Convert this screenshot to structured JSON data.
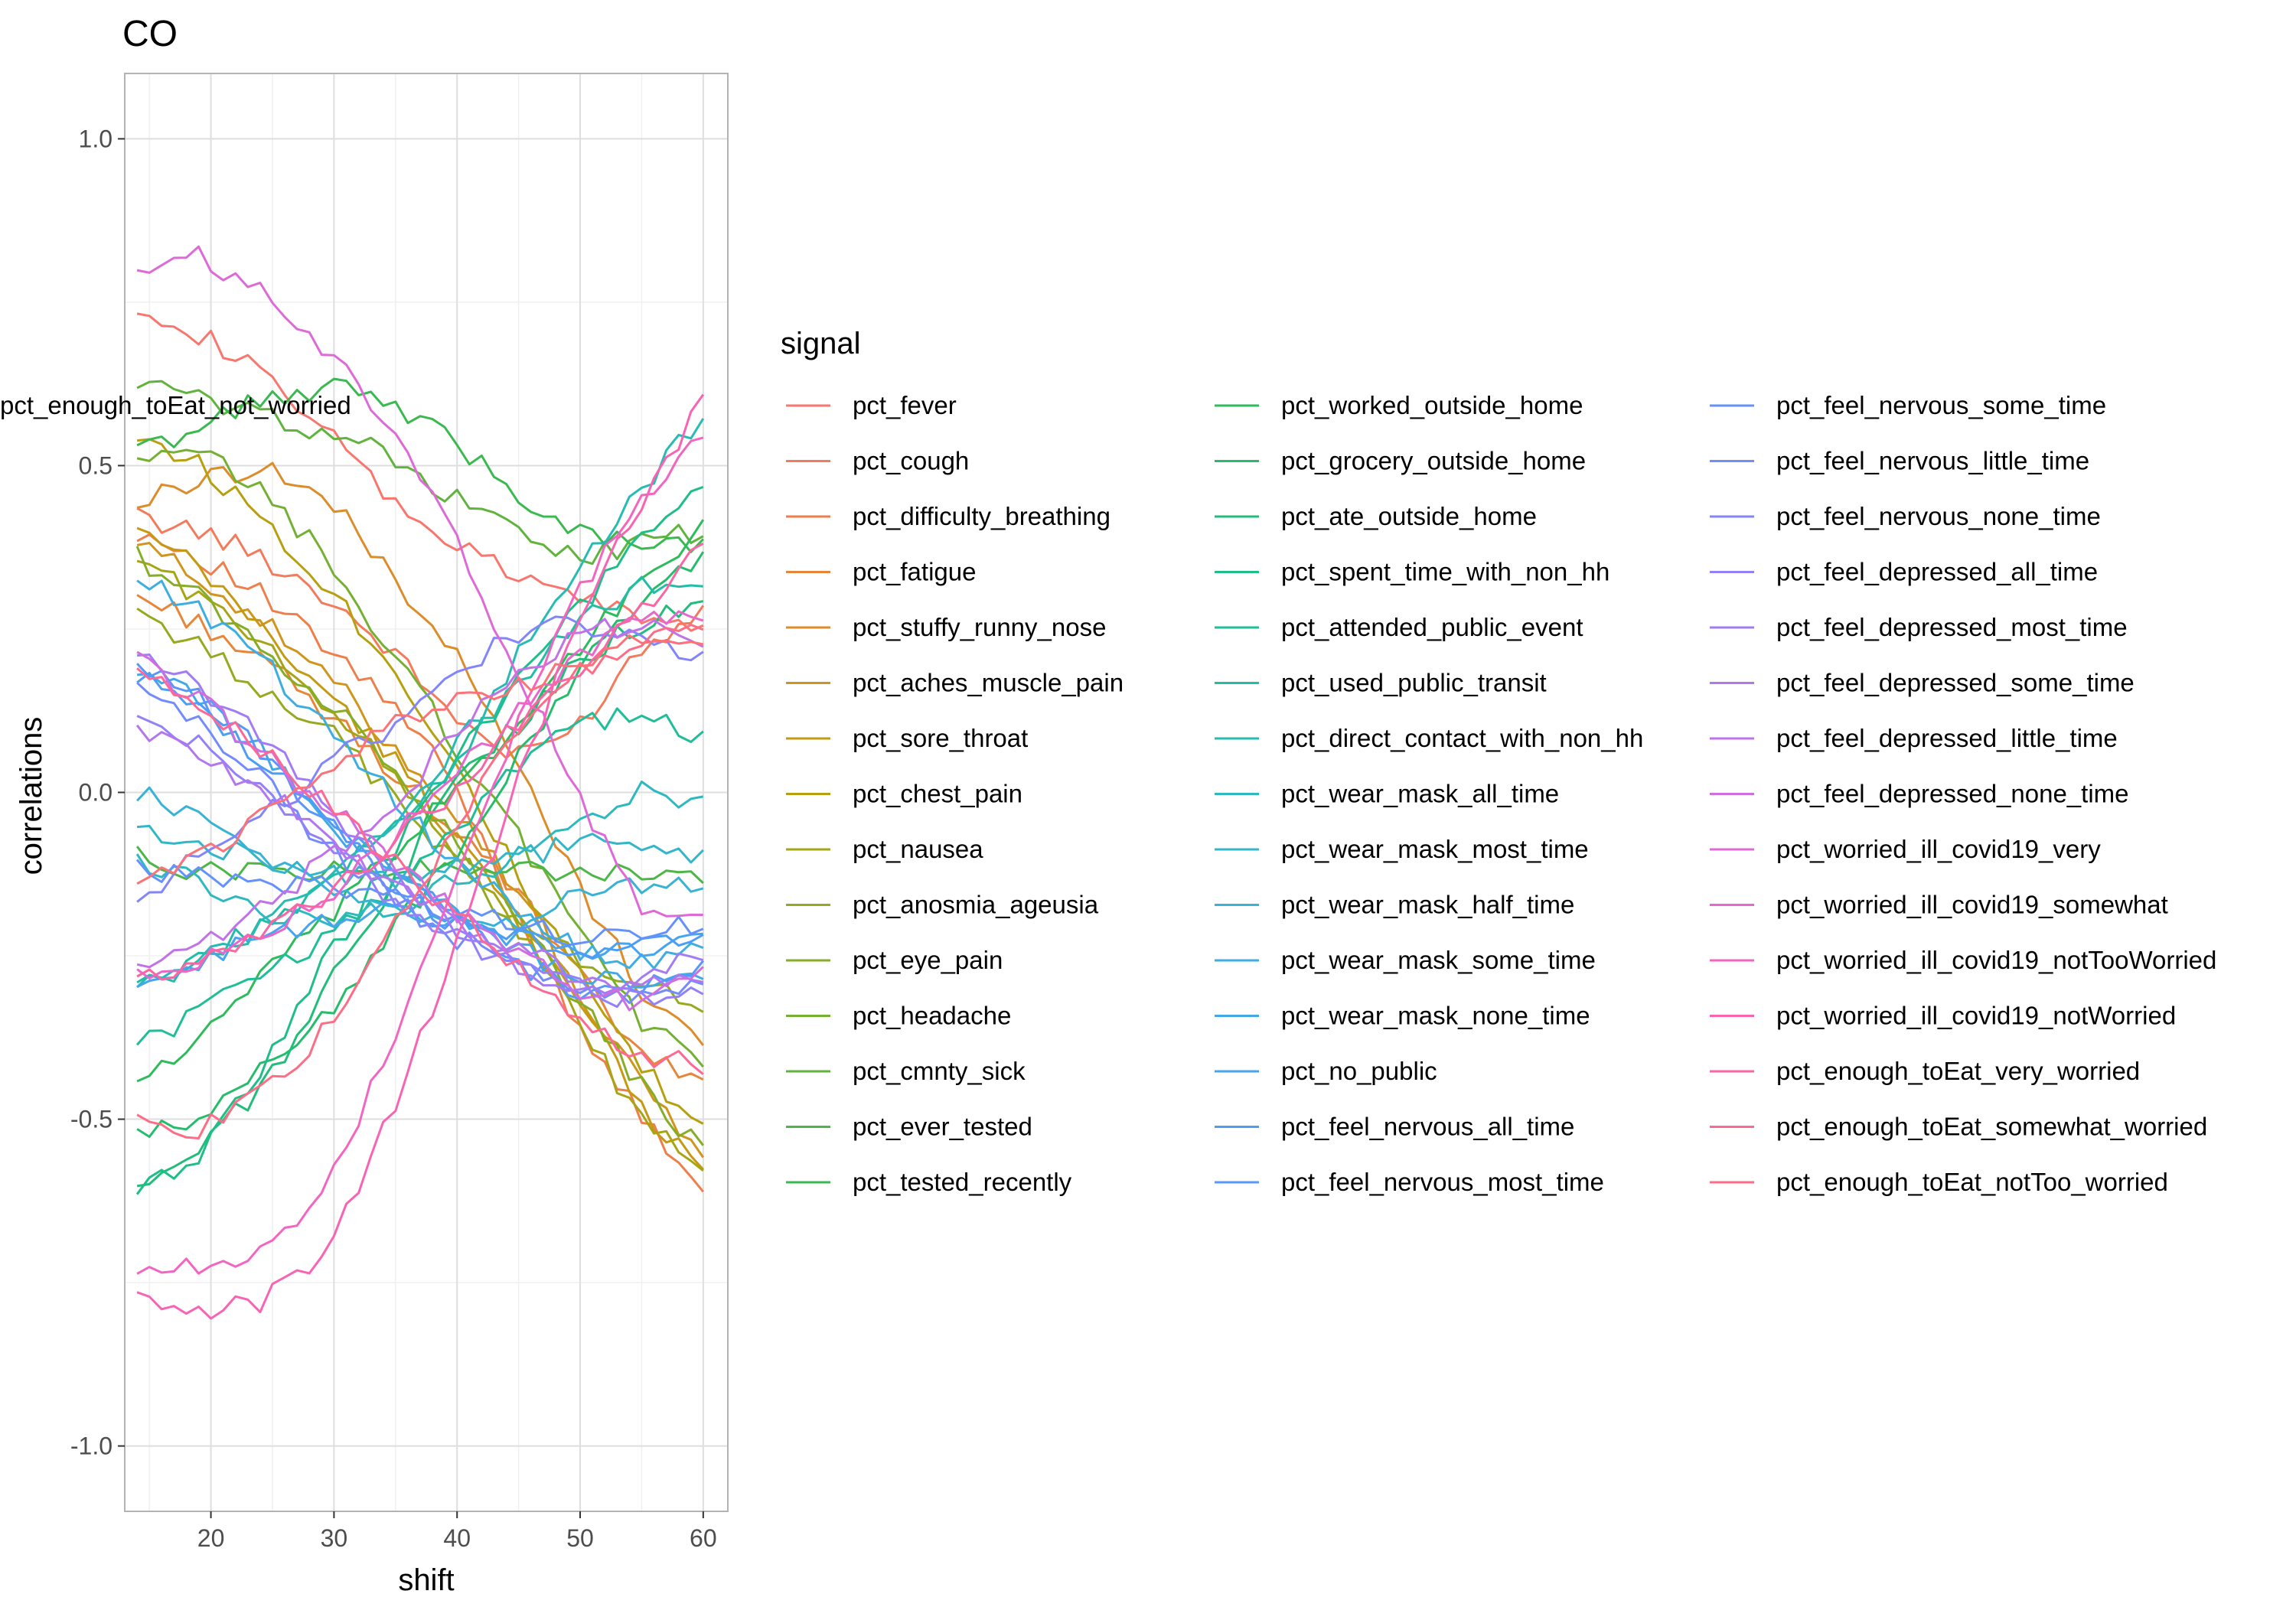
{
  "chart_data": {
    "type": "line",
    "title": "CO",
    "xlabel": "shift",
    "ylabel": "correlations",
    "xlim": [
      13,
      62
    ],
    "ylim": [
      -1.1,
      1.1
    ],
    "xticks": [
      20,
      30,
      40,
      50,
      60
    ],
    "yticks": [
      {
        "value": 1.0,
        "label": "1.0"
      },
      {
        "value": 0.5,
        "label": "0.5"
      },
      {
        "value": 0.0,
        "label": "0.0"
      },
      {
        "value": -0.5,
        "label": "-0.5"
      },
      {
        "value": -1.0,
        "label": "-1.0"
      }
    ],
    "grid": true,
    "legend_title": "signal",
    "legend_position": "right",
    "x_start": 14,
    "x_end": 60,
    "series": [
      {
        "name": "pct_fever",
        "color": "#F8766D",
        "values": [
          0.75,
          0.7,
          0.64,
          0.55,
          0.45,
          0.38,
          0.33,
          0.3,
          0.27,
          0.25
        ]
      },
      {
        "name": "pct_cough",
        "color": "#F47A5C",
        "values": [
          0.42,
          0.4,
          0.36,
          0.3,
          0.22,
          0.12,
          0.05,
          0.1,
          0.22,
          0.28
        ]
      },
      {
        "name": "pct_difficulty_breathing",
        "color": "#EE7F4B",
        "values": [
          0.4,
          0.36,
          0.3,
          0.22,
          0.14,
          0.02,
          -0.18,
          -0.35,
          -0.5,
          -0.6
        ]
      },
      {
        "name": "pct_fatigue",
        "color": "#E6863A",
        "values": [
          0.3,
          0.26,
          0.2,
          0.12,
          0.04,
          -0.05,
          -0.15,
          -0.28,
          -0.4,
          -0.45
        ]
      },
      {
        "name": "pct_stuffy_runny_nose",
        "color": "#DC8D2A",
        "values": [
          0.44,
          0.48,
          0.5,
          0.45,
          0.34,
          0.22,
          0.05,
          -0.14,
          -0.3,
          -0.38
        ]
      },
      {
        "name": "pct_aches_muscle_pain",
        "color": "#D1941C",
        "values": [
          0.38,
          0.33,
          0.26,
          0.18,
          0.08,
          -0.02,
          -0.14,
          -0.3,
          -0.45,
          -0.55
        ]
      },
      {
        "name": "pct_sore_throat",
        "color": "#C49A12",
        "values": [
          0.4,
          0.34,
          0.25,
          0.15,
          0.06,
          -0.06,
          -0.18,
          -0.32,
          -0.48,
          -0.58
        ]
      },
      {
        "name": "pct_chest_pain",
        "color": "#B6A00F",
        "values": [
          0.55,
          0.5,
          0.42,
          0.32,
          0.2,
          0.06,
          -0.12,
          -0.28,
          -0.42,
          -0.52
        ]
      },
      {
        "name": "pct_nausea",
        "color": "#A7A515",
        "values": [
          0.36,
          0.3,
          0.22,
          0.14,
          0.04,
          -0.08,
          -0.2,
          -0.35,
          -0.5,
          -0.58
        ]
      },
      {
        "name": "pct_anosmia_ageusia",
        "color": "#97A91E",
        "values": [
          0.28,
          0.22,
          0.16,
          0.1,
          0.0,
          -0.1,
          -0.2,
          -0.25,
          -0.3,
          -0.32
        ]
      },
      {
        "name": "pct_eye_pain",
        "color": "#86AD28",
        "values": [
          0.36,
          0.3,
          0.22,
          0.14,
          0.05,
          -0.06,
          -0.18,
          -0.32,
          -0.45,
          -0.55
        ]
      },
      {
        "name": "pct_headache",
        "color": "#74B032",
        "values": [
          0.5,
          0.52,
          0.46,
          0.36,
          0.22,
          0.08,
          -0.06,
          -0.2,
          -0.35,
          -0.42
        ]
      },
      {
        "name": "pct_cmnty_sick",
        "color": "#60B33C",
        "values": [
          0.63,
          0.6,
          0.58,
          0.55,
          0.52,
          0.45,
          0.4,
          0.36,
          0.38,
          0.4
        ]
      },
      {
        "name": "pct_ever_tested",
        "color": "#4CB646",
        "values": [
          -0.1,
          -0.12,
          -0.12,
          -0.12,
          -0.12,
          -0.12,
          -0.12,
          -0.12,
          -0.13,
          -0.14
        ]
      },
      {
        "name": "pct_tested_recently",
        "color": "#3AB950",
        "values": [
          0.52,
          0.56,
          0.6,
          0.62,
          0.6,
          0.54,
          0.46,
          0.4,
          0.38,
          0.38
        ]
      },
      {
        "name": "pct_worked_outside_home",
        "color": "#2EBB5C",
        "values": [
          -0.44,
          -0.38,
          -0.28,
          -0.2,
          -0.1,
          0.0,
          0.1,
          0.22,
          0.32,
          0.4
        ]
      },
      {
        "name": "pct_grocery_outside_home",
        "color": "#27BC6B",
        "values": [
          -0.53,
          -0.5,
          -0.42,
          -0.34,
          -0.22,
          -0.1,
          0.04,
          0.18,
          0.3,
          0.36
        ]
      },
      {
        "name": "pct_ate_outside_home",
        "color": "#22BD7A",
        "values": [
          -0.6,
          -0.55,
          -0.45,
          -0.3,
          -0.15,
          0.0,
          0.1,
          0.2,
          0.26,
          0.28
        ]
      },
      {
        "name": "pct_spent_time_with_non_hh",
        "color": "#1FBE89",
        "values": [
          -0.62,
          -0.55,
          -0.42,
          -0.26,
          -0.1,
          0.04,
          0.16,
          0.28,
          0.38,
          0.47
        ]
      },
      {
        "name": "pct_attended_public_event",
        "color": "#1FBE98",
        "values": [
          -0.38,
          -0.34,
          -0.28,
          -0.22,
          -0.15,
          -0.06,
          0.04,
          0.1,
          0.12,
          0.08
        ]
      },
      {
        "name": "pct_used_public_transit",
        "color": "#22BDA6",
        "values": [
          -0.3,
          -0.26,
          -0.2,
          -0.14,
          -0.06,
          0.04,
          0.16,
          0.26,
          0.32,
          0.3
        ]
      },
      {
        "name": "pct_direct_contact_with_non_hh",
        "color": "#27BBB3",
        "values": [
          -0.3,
          -0.26,
          -0.2,
          -0.14,
          -0.06,
          0.06,
          0.2,
          0.34,
          0.46,
          0.58
        ]
      },
      {
        "name": "pct_wear_mask_all_time",
        "color": "#2DB9BF",
        "values": [
          -0.1,
          -0.14,
          -0.18,
          -0.2,
          -0.18,
          -0.14,
          -0.1,
          -0.04,
          0.0,
          -0.02
        ]
      },
      {
        "name": "pct_wear_mask_most_time",
        "color": "#33B6CA",
        "values": [
          -0.05,
          -0.08,
          -0.1,
          -0.12,
          -0.14,
          -0.12,
          -0.1,
          -0.08,
          -0.08,
          -0.1
        ]
      },
      {
        "name": "pct_wear_mask_half_time",
        "color": "#38B2D5",
        "values": [
          0.0,
          -0.04,
          -0.1,
          -0.14,
          -0.18,
          -0.2,
          -0.2,
          -0.16,
          -0.14,
          -0.14
        ]
      },
      {
        "name": "pct_wear_mask_some_time",
        "color": "#3DAEDF",
        "values": [
          0.33,
          0.28,
          0.2,
          0.1,
          0.0,
          -0.1,
          -0.18,
          -0.24,
          -0.26,
          -0.24
        ]
      },
      {
        "name": "pct_wear_mask_none_time",
        "color": "#42A9E8",
        "values": [
          0.18,
          0.14,
          0.06,
          -0.04,
          -0.12,
          -0.18,
          -0.24,
          -0.28,
          -0.3,
          -0.28
        ]
      },
      {
        "name": "pct_no_public",
        "color": "#47A4F0",
        "values": [
          -0.28,
          -0.26,
          -0.22,
          -0.2,
          -0.18,
          -0.2,
          -0.22,
          -0.24,
          -0.24,
          -0.22
        ]
      },
      {
        "name": "pct_feel_nervous_all_time",
        "color": "#4C9EF5",
        "values": [
          0.18,
          0.12,
          0.05,
          -0.04,
          -0.12,
          -0.18,
          -0.22,
          -0.26,
          -0.24,
          -0.22
        ]
      },
      {
        "name": "pct_feel_nervous_most_time",
        "color": "#5798F8",
        "values": [
          0.2,
          0.14,
          0.06,
          -0.04,
          -0.14,
          -0.2,
          -0.26,
          -0.3,
          -0.3,
          -0.26
        ]
      },
      {
        "name": "pct_feel_nervous_some_time",
        "color": "#6592FA",
        "values": [
          -0.12,
          -0.12,
          -0.14,
          -0.14,
          -0.16,
          -0.18,
          -0.2,
          -0.22,
          -0.22,
          -0.2
        ]
      },
      {
        "name": "pct_feel_nervous_little_time",
        "color": "#748CFB",
        "values": [
          0.16,
          0.1,
          0.02,
          -0.08,
          -0.16,
          -0.22,
          -0.26,
          -0.3,
          -0.32,
          -0.28
        ]
      },
      {
        "name": "pct_feel_nervous_none_time",
        "color": "#8286FA",
        "values": [
          -0.16,
          -0.1,
          -0.04,
          0.04,
          0.1,
          0.18,
          0.24,
          0.26,
          0.24,
          0.2
        ]
      },
      {
        "name": "pct_feel_depressed_all_time",
        "color": "#9281F8",
        "values": [
          0.12,
          0.08,
          0.0,
          -0.08,
          -0.16,
          -0.22,
          -0.26,
          -0.3,
          -0.32,
          -0.3
        ]
      },
      {
        "name": "pct_feel_depressed_most_time",
        "color": "#A27CF4",
        "values": [
          0.22,
          0.16,
          0.08,
          -0.02,
          -0.12,
          -0.2,
          -0.26,
          -0.3,
          -0.28,
          -0.24
        ]
      },
      {
        "name": "pct_feel_depressed_some_time",
        "color": "#B277EF",
        "values": [
          0.1,
          0.06,
          0.0,
          -0.06,
          -0.14,
          -0.2,
          -0.24,
          -0.28,
          -0.3,
          -0.28
        ]
      },
      {
        "name": "pct_feel_depressed_little_time",
        "color": "#C172E8",
        "values": [
          -0.28,
          -0.24,
          -0.18,
          -0.1,
          -0.02,
          0.08,
          0.18,
          0.24,
          0.26,
          0.24
        ]
      },
      {
        "name": "pct_feel_depressed_none_time",
        "color": "#D06EE0",
        "values": [
          0.2,
          0.14,
          0.06,
          -0.02,
          -0.1,
          -0.18,
          -0.24,
          -0.3,
          -0.32,
          -0.28
        ]
      },
      {
        "name": "pct_worried_ill_covid19_very",
        "color": "#DD6AD7",
        "values": [
          0.8,
          0.82,
          0.76,
          0.68,
          0.56,
          0.4,
          0.2,
          0.0,
          -0.18,
          -0.2
        ]
      },
      {
        "name": "pct_worried_ill_covid19_somewhat",
        "color": "#E867CC",
        "values": [
          -0.28,
          -0.26,
          -0.22,
          -0.16,
          -0.08,
          0.02,
          0.12,
          0.2,
          0.26,
          0.28
        ]
      },
      {
        "name": "pct_worried_ill_covid19_notTooWorried",
        "color": "#F265C0",
        "values": [
          -0.74,
          -0.72,
          -0.7,
          -0.6,
          -0.4,
          -0.15,
          0.1,
          0.3,
          0.44,
          0.54
        ]
      },
      {
        "name": "pct_worried_ill_covid19_notWorried",
        "color": "#F864B3",
        "values": [
          -0.78,
          -0.8,
          -0.78,
          -0.7,
          -0.5,
          -0.26,
          0.0,
          0.26,
          0.44,
          0.6
        ]
      },
      {
        "name": "pct_enough_toEat_very_worried",
        "color": "#FC65A4",
        "values": [
          -0.28,
          -0.26,
          -0.22,
          -0.16,
          -0.08,
          0.0,
          0.1,
          0.18,
          0.28,
          0.38
        ]
      },
      {
        "name": "pct_enough_toEat_somewhat_worried",
        "color": "#FE6895",
        "values": [
          0.2,
          0.14,
          0.06,
          -0.02,
          -0.1,
          -0.18,
          -0.26,
          -0.34,
          -0.4,
          -0.42
        ]
      },
      {
        "name": "pct_enough_toEat_notToo_worried",
        "color": "#FD6D86",
        "values": [
          -0.5,
          -0.52,
          -0.46,
          -0.36,
          -0.22,
          -0.06,
          0.08,
          0.18,
          0.24,
          0.26
        ]
      },
      {
        "name": "pct_enough_toEat_not_worried",
        "color": "#FB7278",
        "values": [
          -0.15,
          -0.1,
          -0.04,
          0.04,
          0.1,
          0.14,
          0.16,
          0.2,
          0.24,
          0.22
        ]
      }
    ]
  }
}
